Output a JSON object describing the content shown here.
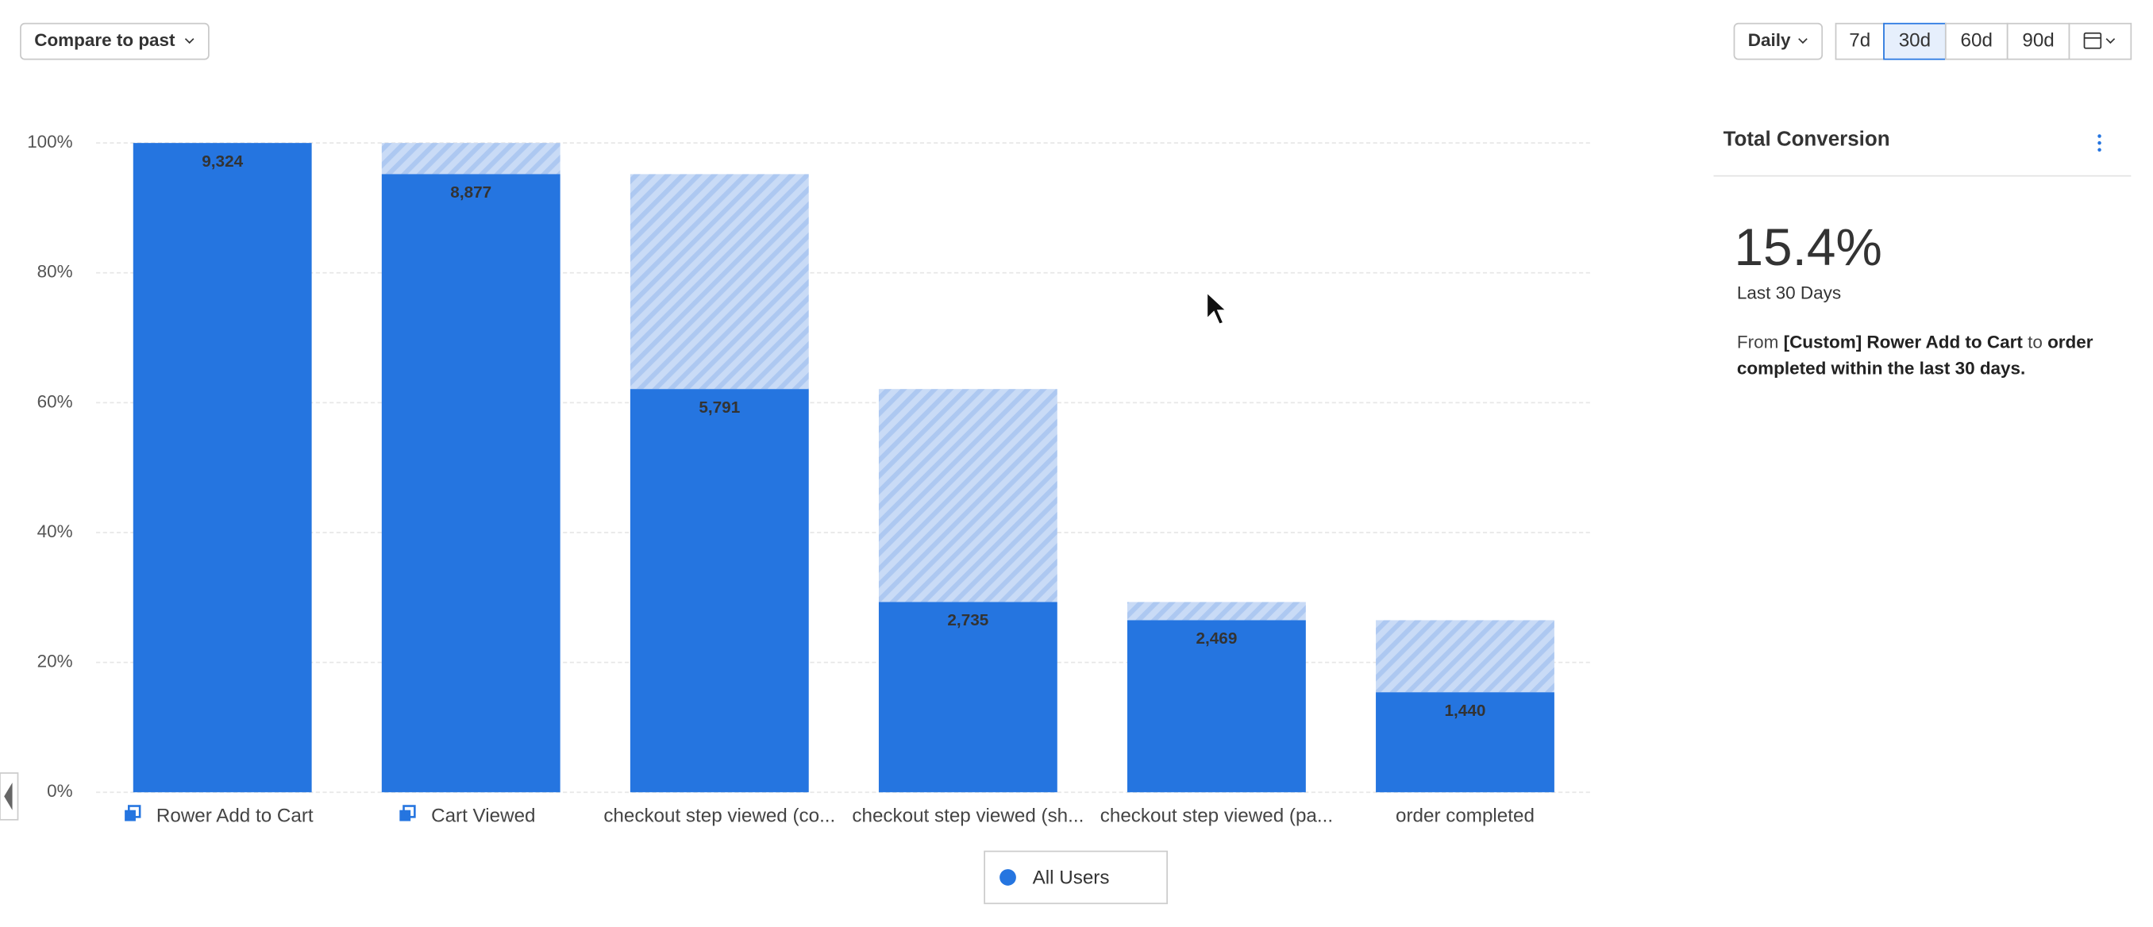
{
  "toolbar": {
    "compare_button": "Compare to past",
    "interval": "Daily",
    "ranges": [
      "7d",
      "30d",
      "60d",
      "90d"
    ],
    "selected_range": "30d"
  },
  "chart_data": {
    "type": "funnel",
    "categories": [
      "Rower Add to Cart",
      "Cart Viewed",
      "checkout step viewed (co...",
      "checkout step viewed (sh...",
      "checkout step viewed (pa...",
      "order completed"
    ],
    "series": [
      {
        "name": "All Users",
        "color": "#2575e0",
        "values": [
          100,
          95.2,
          62.1,
          29.3,
          26.5,
          15.4
        ],
        "counts": [
          {
            "value": 9324,
            "label": "9,324"
          },
          {
            "value": 8877,
            "label": "8,877"
          },
          {
            "value": 5791,
            "label": "5,791"
          },
          {
            "value": 2735,
            "label": "2,735"
          },
          {
            "value": 2469,
            "label": "2,469"
          },
          {
            "value": 1440,
            "label": "1,440"
          }
        ]
      }
    ],
    "ylim": [
      0,
      100
    ],
    "yticks": [
      {
        "value": 0,
        "label": "0%"
      },
      {
        "value": 20,
        "label": "20%"
      },
      {
        "value": 40,
        "label": "40%"
      },
      {
        "value": 60,
        "label": "60%"
      },
      {
        "value": 80,
        "label": "80%"
      },
      {
        "value": 100,
        "label": "100%"
      }
    ],
    "grid": true,
    "legend": "bottom",
    "dropoff_color": "#c9dbf6"
  },
  "sidebar": {
    "title": "Total Conversion",
    "value": "15.4%",
    "period": "Last 30 Days",
    "description": [
      [
        "From ",
        "[Custom] Rower Add to Cart",
        " to ",
        "order"
      ],
      [
        "completed",
        " within the last 30 days."
      ]
    ]
  }
}
